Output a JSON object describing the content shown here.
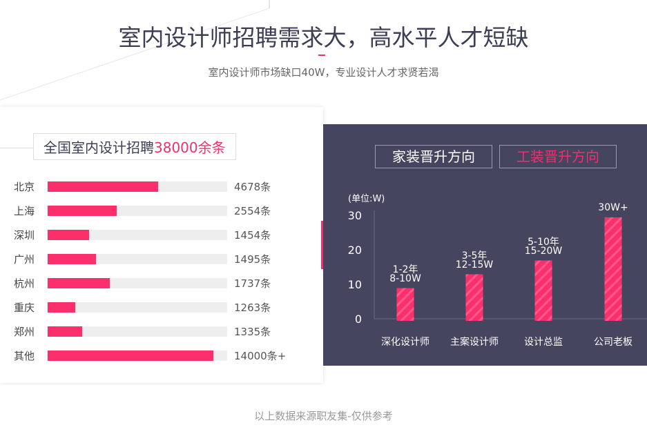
{
  "header": {
    "title": "室内设计师招聘需求大，高水平人才短缺",
    "subtitle": "室内设计师市场缺口40W，专业设计人才求贤若渴"
  },
  "recruit": {
    "title_prefix": "全国室内设计招聘",
    "title_highlight": "38000余条",
    "rows": [
      {
        "city": "北京",
        "value": "4678条",
        "fill": 0.615
      },
      {
        "city": "上海",
        "value": "2554条",
        "fill": 0.385
      },
      {
        "city": "深圳",
        "value": "1454条",
        "fill": 0.231
      },
      {
        "city": "广州",
        "value": "1495条",
        "fill": 0.269
      },
      {
        "city": "杭州",
        "value": "1737条",
        "fill": 0.346
      },
      {
        "city": "重庆",
        "value": "1263条",
        "fill": 0.154
      },
      {
        "city": "郑州",
        "value": "1335条",
        "fill": 0.192
      },
      {
        "city": "其他",
        "value": "14000条+",
        "fill": 0.923
      }
    ]
  },
  "career": {
    "tabs": [
      {
        "label": "家装晋升方向",
        "active": false
      },
      {
        "label": "工装晋升方向",
        "active": true
      }
    ]
  },
  "chart_data": {
    "type": "bar",
    "ylabel": "(单位:W)",
    "ylim": [
      0,
      30
    ],
    "yticks": [
      "0",
      "10",
      "20",
      "30"
    ],
    "categories": [
      "深化设计师",
      "主案设计师",
      "设计总监",
      "公司老板"
    ],
    "values": [
      9.5,
      13.5,
      17.5,
      30
    ],
    "labels": [
      [
        "1-2年",
        "8-10W"
      ],
      [
        "3-5年",
        "12-15W"
      ],
      [
        "5-10年",
        "15-20W"
      ],
      [
        "30W+"
      ]
    ]
  },
  "footer": "以上数据来源职友集-仅供参考",
  "colors": {
    "accent": "#fa2f6c",
    "panel": "#454560",
    "title": "#3d3d55"
  }
}
